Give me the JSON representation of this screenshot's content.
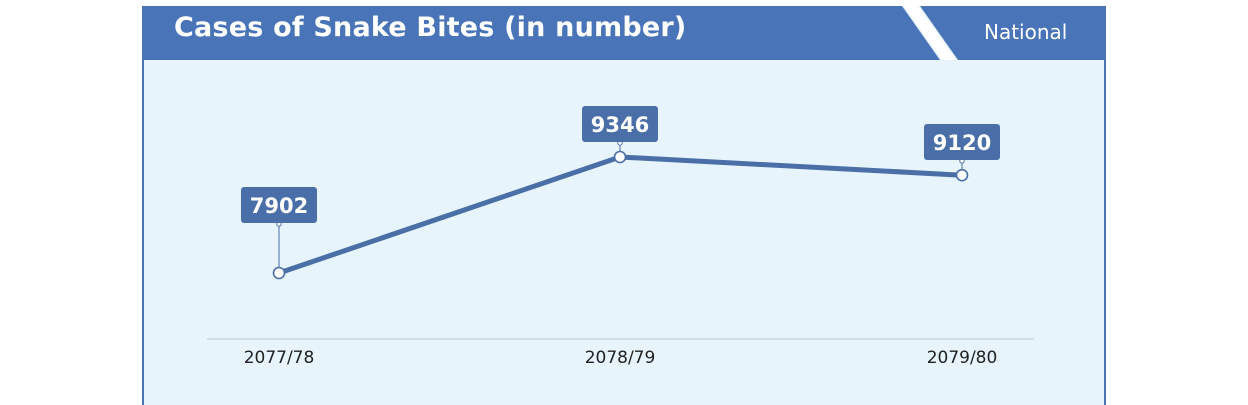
{
  "header": {
    "title": "Cases of Snake Bites (in number)",
    "region_label": "National"
  },
  "colors": {
    "header_blue": "#4a74b8",
    "line": "#4a6ea6",
    "label_box": "#4a6fa8",
    "panel_bg": "#e7f4fc"
  },
  "chart_data": {
    "type": "line",
    "title": "Cases of Snake Bites (in number)",
    "categories": [
      "2077/78",
      "2078/79",
      "2079/80"
    ],
    "series": [
      {
        "values": [
          7902,
          9346,
          9120
        ]
      }
    ],
    "data_labels": [
      "7902",
      "9346",
      "9120"
    ],
    "xlabel": "",
    "ylabel": "",
    "grid": false,
    "legend": "none"
  }
}
